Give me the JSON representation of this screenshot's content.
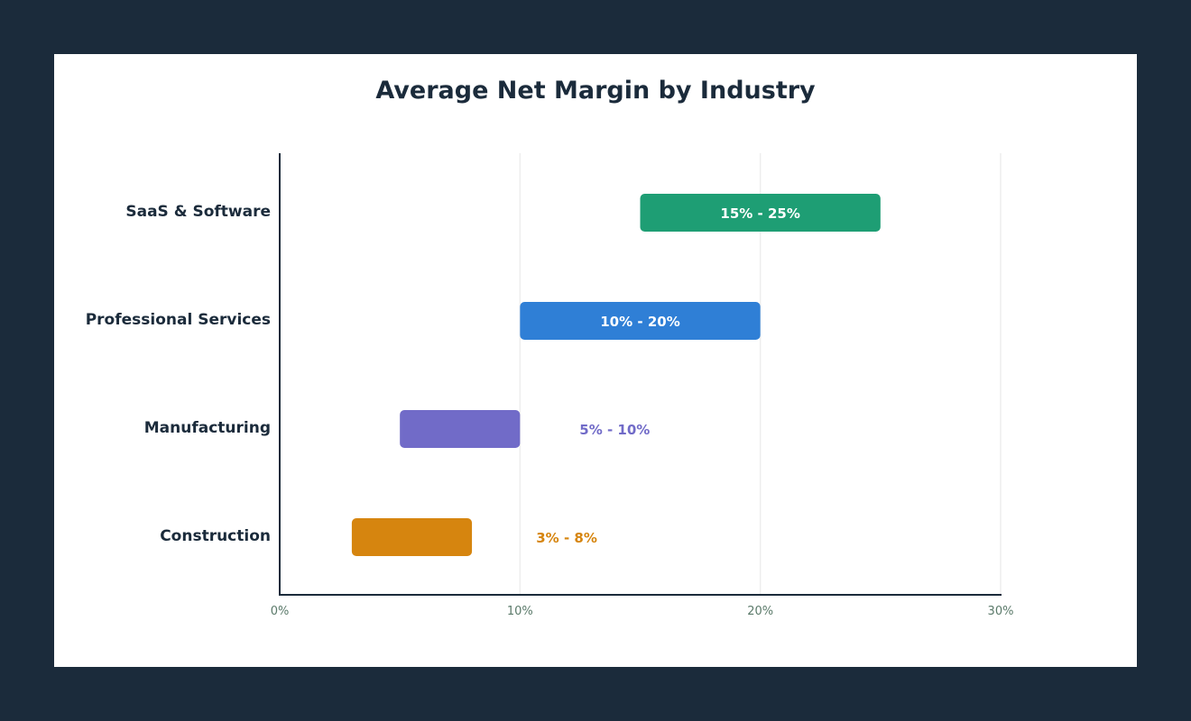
{
  "chart_data": {
    "type": "bar",
    "orientation": "horizontal-range",
    "title": "Average Net Margin by Industry",
    "xlabel": "",
    "ylabel": "",
    "xlim": [
      0,
      30
    ],
    "x_ticks": [
      "0%",
      "10%",
      "20%",
      "30%"
    ],
    "x_tick_values": [
      0,
      10,
      20,
      30
    ],
    "grid": true,
    "categories": [
      "SaaS & Software",
      "Professional Services",
      "Manufacturing",
      "Construction"
    ],
    "ranges": [
      {
        "category": "SaaS & Software",
        "low": 15,
        "high": 25,
        "label": "15% - 25%",
        "color": "#1e9e74",
        "label_inside": true
      },
      {
        "category": "Professional Services",
        "low": 10,
        "high": 20,
        "label": "10% - 20%",
        "color": "#2f7fd6",
        "label_inside": true
      },
      {
        "category": "Manufacturing",
        "low": 5,
        "high": 10,
        "label": "5% - 10%",
        "color": "#716bc8",
        "label_inside": false
      },
      {
        "category": "Construction",
        "low": 3,
        "high": 8,
        "label": "3% - 8%",
        "color": "#d6850f",
        "label_inside": false
      }
    ]
  }
}
